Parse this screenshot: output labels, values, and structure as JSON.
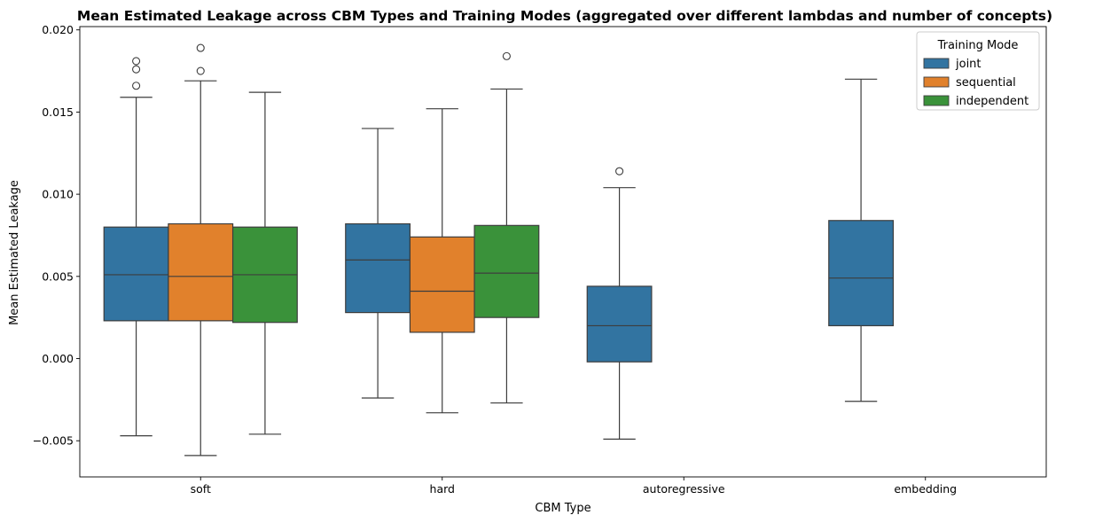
{
  "chart_data": {
    "type": "box",
    "title": "Mean Estimated Leakage across CBM Types and Training Modes (aggregated over different lambdas and number of concepts)",
    "xlabel": "CBM Type",
    "ylabel": "Mean Estimated Leakage",
    "ylim": [
      -0.0072,
      0.0202
    ],
    "yticks": [
      -0.005,
      0.0,
      0.005,
      0.01,
      0.015,
      0.02
    ],
    "ytick_labels": [
      "−0.005",
      "0.000",
      "0.005",
      "0.010",
      "0.015",
      "0.020"
    ],
    "categories": [
      "soft",
      "hard",
      "autoregressive",
      "embedding"
    ],
    "legend": {
      "title": "Training Mode",
      "position": "top-right"
    },
    "series": [
      {
        "name": "joint",
        "color": "#3274a1",
        "boxes": [
          {
            "category": "soft",
            "whisker_low": -0.0047,
            "q1": 0.0023,
            "median": 0.0051,
            "q3": 0.008,
            "whisker_high": 0.0159,
            "outliers": [
              0.0166,
              0.0176,
              0.0181
            ]
          },
          {
            "category": "hard",
            "whisker_low": -0.0024,
            "q1": 0.0028,
            "median": 0.006,
            "q3": 0.0082,
            "whisker_high": 0.014,
            "outliers": []
          },
          {
            "category": "autoregressive",
            "whisker_low": -0.0049,
            "q1": -0.0002,
            "median": 0.002,
            "q3": 0.0044,
            "whisker_high": 0.0104,
            "outliers": [
              0.0114
            ]
          },
          {
            "category": "embedding",
            "whisker_low": -0.0026,
            "q1": 0.002,
            "median": 0.0049,
            "q3": 0.0084,
            "whisker_high": 0.017,
            "outliers": []
          }
        ]
      },
      {
        "name": "sequential",
        "color": "#e1812c",
        "boxes": [
          {
            "category": "soft",
            "whisker_low": -0.0059,
            "q1": 0.0023,
            "median": 0.005,
            "q3": 0.0082,
            "whisker_high": 0.0169,
            "outliers": [
              0.0175,
              0.0189
            ]
          },
          {
            "category": "hard",
            "whisker_low": -0.0033,
            "q1": 0.0016,
            "median": 0.0041,
            "q3": 0.0074,
            "whisker_high": 0.0152,
            "outliers": []
          }
        ]
      },
      {
        "name": "independent",
        "color": "#3a923a",
        "boxes": [
          {
            "category": "soft",
            "whisker_low": -0.0046,
            "q1": 0.0022,
            "median": 0.0051,
            "q3": 0.008,
            "whisker_high": 0.0162,
            "outliers": []
          },
          {
            "category": "hard",
            "whisker_low": -0.0027,
            "q1": 0.0025,
            "median": 0.0052,
            "q3": 0.0081,
            "whisker_high": 0.0164,
            "outliers": [
              0.0184
            ]
          }
        ]
      }
    ]
  }
}
